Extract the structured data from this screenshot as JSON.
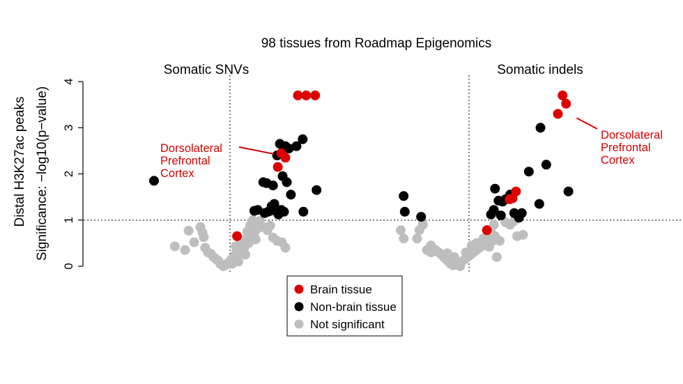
{
  "chart_data": {
    "type": "scatter",
    "title": "98 tissues from Roadmap Epigenomics",
    "ylabel_line1": "Distal H3K27ac peaks",
    "ylabel_line2": "Significance: −log10(p−value)",
    "ylim": [
      0,
      4
    ],
    "yticks": [
      "0",
      "1",
      "2",
      "3",
      "4"
    ],
    "threshold": 1,
    "legend_placement": "bottom-center",
    "colors": {
      "brain": "#dd0000",
      "nonbrain": "#000000",
      "ns": "#bebebe"
    },
    "legend": [
      {
        "key": "brain",
        "label": "Brain tissue"
      },
      {
        "key": "nonbrain",
        "label": "Non-brain tissue"
      },
      {
        "key": "ns",
        "label": "Not significant"
      }
    ],
    "panels": [
      {
        "title": "Somatic SNVs",
        "xlim": [
          -1,
          1.55
        ],
        "annotation": [
          "Dorsolateral",
          "Prefrontal",
          "Cortex"
        ],
        "annotation_target": [
          0.82,
          2.4
        ],
        "points": {
          "ns": [
            [
              -0.7,
              0.43
            ],
            [
              -0.55,
              0.35
            ],
            [
              -0.5,
              0.77
            ],
            [
              -0.42,
              0.52
            ],
            [
              -0.33,
              0.85
            ],
            [
              -0.3,
              0.73
            ],
            [
              -0.28,
              0.63
            ],
            [
              -0.26,
              0.4
            ],
            [
              -0.22,
              0.3
            ],
            [
              -0.18,
              0.27
            ],
            [
              -0.14,
              0.2
            ],
            [
              -0.1,
              0.15
            ],
            [
              -0.07,
              0.12
            ],
            [
              -0.04,
              0.05
            ],
            [
              0.0,
              0.0
            ],
            [
              0.04,
              0.03
            ],
            [
              0.07,
              0.07
            ],
            [
              0.1,
              0.1
            ],
            [
              0.12,
              0.15
            ],
            [
              0.15,
              0.18
            ],
            [
              0.17,
              0.25
            ],
            [
              0.19,
              0.2
            ],
            [
              0.21,
              0.32
            ],
            [
              0.23,
              0.38
            ],
            [
              0.25,
              0.45
            ],
            [
              0.27,
              0.3
            ],
            [
              0.29,
              0.55
            ],
            [
              0.31,
              0.42
            ],
            [
              0.33,
              0.6
            ],
            [
              0.35,
              0.75
            ],
            [
              0.37,
              0.5
            ],
            [
              0.39,
              0.88
            ],
            [
              0.41,
              0.65
            ],
            [
              0.43,
              1.0
            ],
            [
              0.45,
              0.72
            ],
            [
              0.47,
              0.58
            ],
            [
              0.5,
              0.82
            ],
            [
              0.53,
              0.98
            ],
            [
              0.58,
              0.85
            ],
            [
              0.64,
              0.78
            ],
            [
              0.68,
              0.88
            ],
            [
              0.72,
              0.62
            ],
            [
              0.78,
              0.55
            ],
            [
              0.85,
              0.52
            ],
            [
              0.9,
              0.4
            ],
            [
              0.32,
              0.25
            ],
            [
              0.13,
              0.05
            ],
            [
              0.22,
              0.1
            ],
            [
              0.18,
              0.43
            ],
            [
              0.26,
              0.52
            ]
          ],
          "nonbrain": [
            [
              -1.0,
              1.85
            ],
            [
              0.45,
              1.2
            ],
            [
              0.5,
              1.22
            ],
            [
              0.58,
              1.82
            ],
            [
              0.6,
              1.15
            ],
            [
              0.63,
              1.8
            ],
            [
              0.65,
              1.18
            ],
            [
              0.68,
              1.2
            ],
            [
              0.7,
              1.3
            ],
            [
              0.72,
              1.75
            ],
            [
              0.74,
              1.35
            ],
            [
              0.76,
              1.2
            ],
            [
              0.78,
              2.4
            ],
            [
              0.8,
              1.12
            ],
            [
              0.82,
              2.65
            ],
            [
              0.84,
              1.22
            ],
            [
              0.86,
              1.95
            ],
            [
              0.88,
              1.18
            ],
            [
              0.9,
              2.6
            ],
            [
              0.92,
              1.82
            ],
            [
              0.95,
              2.55
            ],
            [
              0.98,
              1.55
            ],
            [
              1.06,
              2.6
            ],
            [
              1.15,
              2.75
            ],
            [
              1.16,
              1.18
            ],
            [
              1.35,
              1.65
            ]
          ],
          "brain": [
            [
              0.2,
              0.65
            ],
            [
              0.79,
              2.15
            ],
            [
              0.84,
              2.45
            ],
            [
              0.9,
              2.35
            ],
            [
              1.08,
              3.7
            ],
            [
              1.2,
              3.7
            ],
            [
              1.33,
              3.7
            ]
          ]
        }
      },
      {
        "title": "Somatic indels",
        "xlim": [
          -1,
          2.4
        ],
        "annotation": [
          "Dorsolateral",
          "Prefrontal",
          "Cortex"
        ],
        "annotation_target": [
          1.95,
          3.3
        ],
        "points": {
          "ns": [
            [
              -1.0,
              0.78
            ],
            [
              -0.95,
              0.6
            ],
            [
              -0.72,
              0.6
            ],
            [
              -0.68,
              0.78
            ],
            [
              -0.62,
              0.9
            ],
            [
              -0.55,
              0.35
            ],
            [
              -0.48,
              0.45
            ],
            [
              -0.4,
              0.35
            ],
            [
              -0.35,
              0.3
            ],
            [
              -0.3,
              0.25
            ],
            [
              -0.26,
              0.2
            ],
            [
              -0.22,
              0.15
            ],
            [
              -0.18,
              0.1
            ],
            [
              -0.14,
              0.05
            ],
            [
              -0.1,
              0.02
            ],
            [
              -0.05,
              0.05
            ],
            [
              0.0,
              0.08
            ],
            [
              0.05,
              0.1
            ],
            [
              0.1,
              0.15
            ],
            [
              0.15,
              0.2
            ],
            [
              0.2,
              0.25
            ],
            [
              0.25,
              0.3
            ],
            [
              0.3,
              0.35
            ],
            [
              0.35,
              0.4
            ],
            [
              0.38,
              0.5
            ],
            [
              0.4,
              0.55
            ],
            [
              0.42,
              0.6
            ],
            [
              0.45,
              0.45
            ],
            [
              0.5,
              0.7
            ],
            [
              0.55,
              0.8
            ],
            [
              0.6,
              0.9
            ],
            [
              0.62,
              0.65
            ],
            [
              0.65,
              0.2
            ],
            [
              0.7,
              0.55
            ],
            [
              0.8,
              0.95
            ],
            [
              0.88,
              0.9
            ],
            [
              0.95,
              0.98
            ],
            [
              1.0,
              0.65
            ],
            [
              1.1,
              0.68
            ],
            [
              -0.48,
              0.3
            ],
            [
              0.22,
              0.45
            ],
            [
              0.3,
              0.5
            ],
            [
              0.12,
              0.3
            ],
            [
              -0.08,
              0.2
            ],
            [
              0.52,
              0.42
            ],
            [
              0.58,
              0.55
            ],
            [
              0.02,
              0.0
            ],
            [
              -0.2,
              0.28
            ]
          ],
          "nonbrain": [
            [
              -0.95,
              1.52
            ],
            [
              -0.93,
              1.18
            ],
            [
              -0.65,
              1.07
            ],
            [
              0.55,
              1.12
            ],
            [
              0.62,
              1.68
            ],
            [
              0.6,
              1.22
            ],
            [
              0.68,
              1.42
            ],
            [
              0.72,
              1.1
            ],
            [
              0.75,
              1.4
            ],
            [
              0.8,
              1.45
            ],
            [
              0.88,
              1.55
            ],
            [
              0.95,
              1.15
            ],
            [
              1.03,
              1.05
            ],
            [
              1.08,
              1.15
            ],
            [
              1.2,
              2.05
            ],
            [
              1.38,
              1.35
            ],
            [
              1.4,
              3.0
            ],
            [
              1.5,
              2.2
            ],
            [
              1.88,
              1.62
            ]
          ],
          "brain": [
            [
              0.48,
              0.78
            ],
            [
              0.87,
              1.45
            ],
            [
              0.92,
              1.47
            ],
            [
              0.98,
              1.62
            ],
            [
              1.7,
              3.3
            ],
            [
              1.78,
              3.7
            ],
            [
              1.84,
              3.52
            ]
          ]
        }
      }
    ]
  }
}
